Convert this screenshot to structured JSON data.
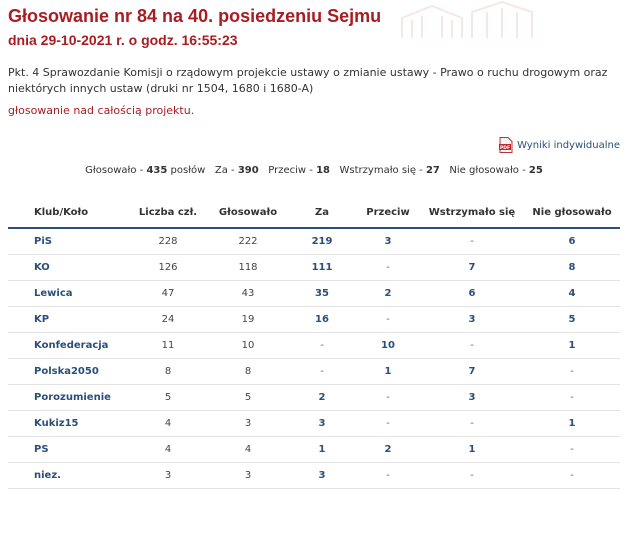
{
  "header": {
    "title": "Głosowanie nr 84 na 40. posiedzeniu Sejmu",
    "subtitle": "dnia 29-10-2021 r. o godz. 16:55:23"
  },
  "description": "Pkt. 4 Sprawozdanie Komisji o rządowym projekcie ustawy o zmianie ustawy - Prawo o ruchu drogowym oraz niektórych innych ustaw (druki nr 1504, 1680 i 1680-A)",
  "vote_type": "głosowanie nad całością projektu.",
  "pdf_link": {
    "label": "Wyniki indywidualne",
    "icon": "pdf-icon"
  },
  "summary": {
    "voted_label": "Głosowało -",
    "voted_value": "435",
    "voted_unit": "posłów",
    "za_label": "Za -",
    "za_value": "390",
    "przeciw_label": "Przeciw -",
    "przeciw_value": "18",
    "wstrzymalo_label": "Wstrzymało się -",
    "wstrzymalo_value": "27",
    "nie_label": "Nie głosowało -",
    "nie_value": "25"
  },
  "table": {
    "headers": [
      "Klub/Koło",
      "Liczba czł.",
      "Głosowało",
      "Za",
      "Przeciw",
      "Wstrzymało się",
      "Nie głosowało"
    ],
    "rows": [
      [
        "PiS",
        "228",
        "222",
        "219",
        "3",
        "-",
        "6"
      ],
      [
        "KO",
        "126",
        "118",
        "111",
        "-",
        "7",
        "8"
      ],
      [
        "Lewica",
        "47",
        "43",
        "35",
        "2",
        "6",
        "4"
      ],
      [
        "KP",
        "24",
        "19",
        "16",
        "-",
        "3",
        "5"
      ],
      [
        "Konfederacja",
        "11",
        "10",
        "-",
        "10",
        "-",
        "1"
      ],
      [
        "Polska2050",
        "8",
        "8",
        "-",
        "1",
        "7",
        "-"
      ],
      [
        "Porozumienie",
        "5",
        "5",
        "2",
        "-",
        "3",
        "-"
      ],
      [
        "Kukiz15",
        "4",
        "3",
        "3",
        "-",
        "-",
        "1"
      ],
      [
        "PS",
        "4",
        "4",
        "1",
        "2",
        "1",
        "-"
      ],
      [
        "niez.",
        "3",
        "3",
        "3",
        "-",
        "-",
        "-"
      ]
    ]
  },
  "colors": {
    "title": "#a81d22",
    "link": "#2b4f7a",
    "divider": "#e3e3e3"
  }
}
